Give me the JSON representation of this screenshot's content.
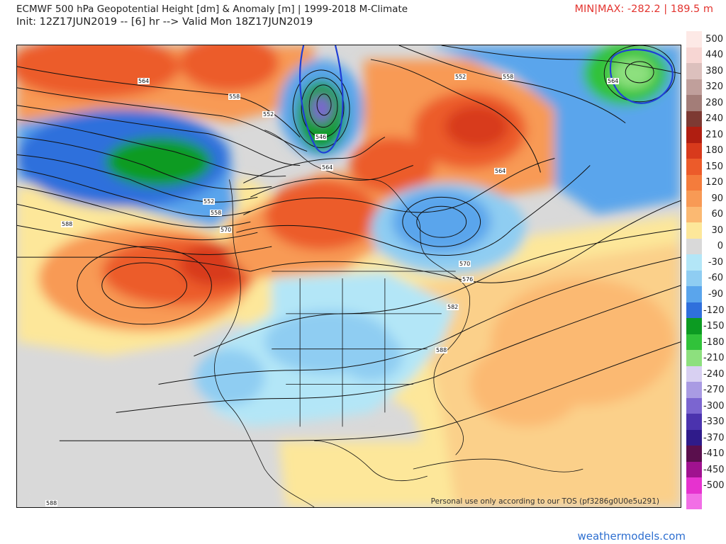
{
  "header": {
    "title": "ECMWF 500 hPa Geopotential Height [dm] & Anomaly [m] | 1999-2018 M-Climate",
    "subtitle": "Init: 12Z17JUN2019 -- [6] hr --> Valid Mon 18Z17JUN2019",
    "minmax": "MIN|MAX: -282.2 | 189.5 m"
  },
  "map": {
    "watermark": "Personal use only according to our TOS (pf3286g0U0e5u291)",
    "contour_labels": [
      "564",
      "558",
      "552",
      "546",
      "564",
      "552",
      "558",
      "564",
      "552",
      "558",
      "570",
      "588",
      "564",
      "570",
      "576",
      "582",
      "588",
      "588"
    ]
  },
  "legend": {
    "entries": [
      {
        "label": "500",
        "color": "#fde9e6"
      },
      {
        "label": "440",
        "color": "#f7d6d3"
      },
      {
        "label": "380",
        "color": "#dcc0bd"
      },
      {
        "label": "320",
        "color": "#c09f9b"
      },
      {
        "label": "280",
        "color": "#a37d78"
      },
      {
        "label": "240",
        "color": "#7d3a33"
      },
      {
        "label": "210",
        "color": "#b01e11"
      },
      {
        "label": "180",
        "color": "#d83a1c"
      },
      {
        "label": "150",
        "color": "#ec5b2a"
      },
      {
        "label": "120",
        "color": "#f47c3c"
      },
      {
        "label": "90",
        "color": "#f89a55"
      },
      {
        "label": "60",
        "color": "#fbb972"
      },
      {
        "label": "30",
        "color": "#fde79a"
      },
      {
        "label": "0",
        "color": "#d9d9d9"
      },
      {
        "label": "-30",
        "color": "#b3e6f7"
      },
      {
        "label": "-60",
        "color": "#8fcdf2"
      },
      {
        "label": "-90",
        "color": "#5aa5ec"
      },
      {
        "label": "-120",
        "color": "#2f70dc"
      },
      {
        "label": "-150",
        "color": "#0c9b22"
      },
      {
        "label": "-180",
        "color": "#31c23a"
      },
      {
        "label": "-210",
        "color": "#8de07e"
      },
      {
        "label": "-240",
        "color": "#d8d0f2"
      },
      {
        "label": "-270",
        "color": "#a99be3"
      },
      {
        "label": "-300",
        "color": "#7b65d0"
      },
      {
        "label": "-330",
        "color": "#4b33ae"
      },
      {
        "label": "-370",
        "color": "#2f1b8a"
      },
      {
        "label": "-410",
        "color": "#5a0f4d"
      },
      {
        "label": "-450",
        "color": "#a0128f"
      },
      {
        "label": "-500",
        "color": "#e632cf"
      },
      {
        "label": "",
        "color": "#f26fe6"
      }
    ]
  },
  "footer": {
    "site": "weathermodels.com"
  },
  "colors": {
    "minmax": "#e3342f",
    "footer_link": "#2e6fd0"
  }
}
